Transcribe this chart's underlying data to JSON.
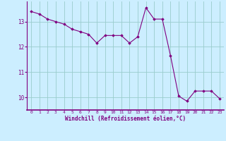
{
  "x": [
    0,
    1,
    2,
    3,
    4,
    5,
    6,
    7,
    8,
    9,
    10,
    11,
    12,
    13,
    14,
    15,
    16,
    17,
    18,
    19,
    20,
    21,
    22,
    23
  ],
  "y": [
    13.4,
    13.3,
    13.1,
    13.0,
    12.9,
    12.7,
    12.6,
    12.5,
    12.15,
    12.45,
    12.45,
    12.45,
    12.15,
    12.4,
    13.55,
    13.1,
    13.1,
    11.65,
    10.05,
    9.85,
    10.25,
    10.25,
    10.25,
    9.95
  ],
  "line_color": "#800080",
  "marker": "D",
  "markersize": 1.8,
  "linewidth": 0.8,
  "bg_color": "#cceeff",
  "grid_color": "#99cccc",
  "xlabel": "Windchill (Refroidissement éolien,°C)",
  "xlabel_color": "#800080",
  "tick_color": "#800080",
  "yticks": [
    10,
    11,
    12,
    13
  ],
  "xticks": [
    0,
    1,
    2,
    3,
    4,
    5,
    6,
    7,
    8,
    9,
    10,
    11,
    12,
    13,
    14,
    15,
    16,
    17,
    18,
    19,
    20,
    21,
    22,
    23
  ],
  "ylim": [
    9.5,
    13.8
  ],
  "xlim": [
    -0.5,
    23.5
  ]
}
